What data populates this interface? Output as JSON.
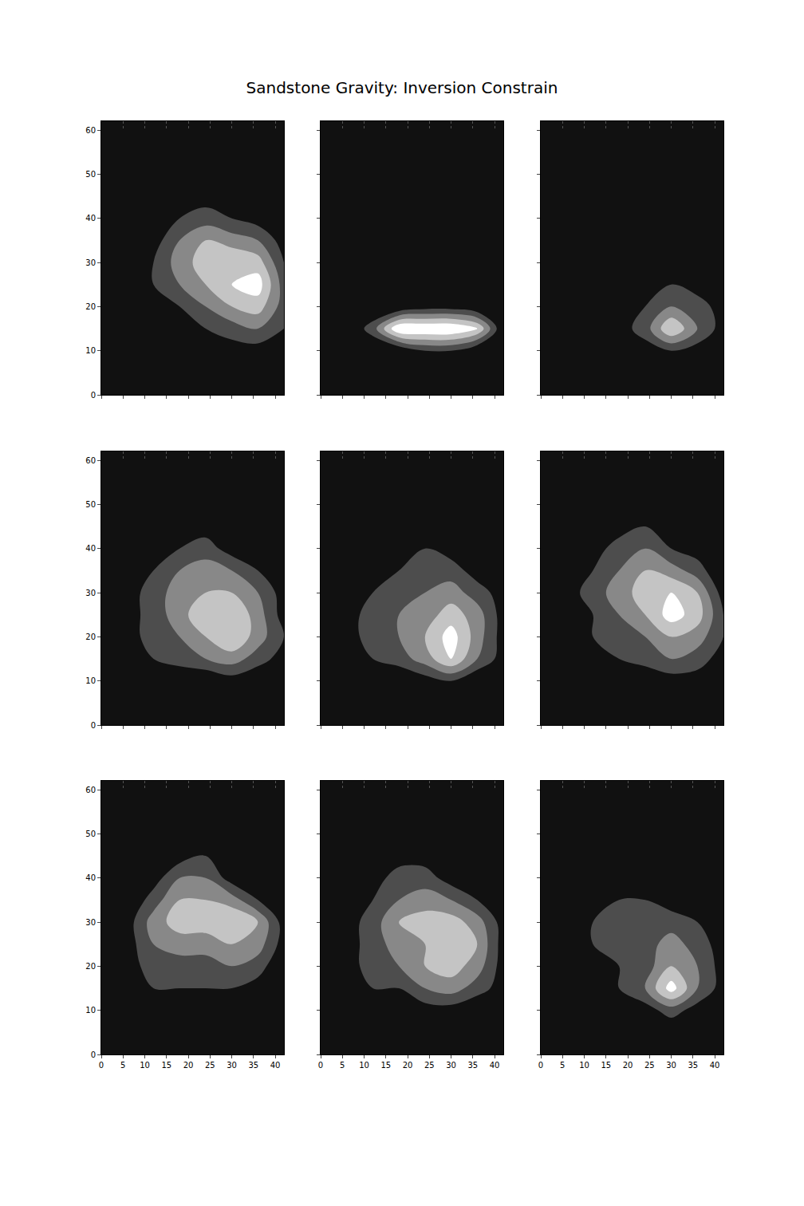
{
  "chart_data": {
    "type": "contour",
    "title": "Sandstone Gravity: Inversion Constrain",
    "xlim": [
      0,
      42
    ],
    "ylim": [
      0,
      62
    ],
    "xticks": [
      0,
      5,
      10,
      15,
      20,
      25,
      30,
      35,
      40
    ],
    "yticks": [
      0,
      10,
      20,
      30,
      40,
      50,
      60
    ],
    "zlim": [
      0,
      10
    ],
    "grid": true,
    "x": [
      0,
      6,
      12,
      18,
      24,
      30,
      36,
      42
    ],
    "y": [
      0,
      5,
      10,
      15,
      20,
      25,
      30,
      35,
      40,
      45,
      50,
      55,
      60
    ],
    "panels": [
      {
        "z": [
          [
            0,
            0,
            0,
            0,
            0,
            0,
            0,
            0
          ],
          [
            0,
            0,
            0,
            0,
            0,
            0,
            0,
            0
          ],
          [
            0,
            0,
            0,
            0,
            0,
            1,
            1,
            0
          ],
          [
            1,
            1,
            1,
            1,
            2,
            3,
            4,
            2
          ],
          [
            0,
            1,
            2,
            2,
            4,
            6,
            7,
            3
          ],
          [
            0,
            1,
            2,
            4,
            6,
            8,
            9,
            3
          ],
          [
            0,
            0,
            2,
            5,
            7,
            8,
            7,
            2
          ],
          [
            0,
            0,
            1,
            4,
            6,
            5,
            4,
            1
          ],
          [
            0,
            0,
            1,
            2,
            3,
            2,
            1,
            0
          ],
          [
            0,
            0,
            0,
            1,
            1,
            0,
            0,
            0
          ],
          [
            0,
            0,
            0,
            0,
            0,
            0,
            0,
            0
          ],
          [
            0,
            0,
            0,
            0,
            0,
            0,
            0,
            0
          ],
          [
            0,
            0,
            0,
            0,
            0,
            0,
            0,
            0
          ]
        ]
      },
      {
        "z": [
          [
            0,
            0,
            0,
            0,
            0,
            0,
            0,
            0
          ],
          [
            0,
            0,
            0,
            0,
            0,
            0,
            0,
            0
          ],
          [
            0,
            0,
            0,
            0,
            2,
            2,
            0,
            0
          ],
          [
            0,
            0,
            3,
            10,
            10,
            10,
            8,
            0
          ],
          [
            0,
            0,
            0,
            0,
            1,
            1,
            0,
            0
          ],
          [
            0,
            0,
            0,
            0,
            0,
            0,
            0,
            0
          ],
          [
            0,
            0,
            0,
            0,
            0,
            0,
            0,
            0
          ],
          [
            0,
            0,
            0,
            0,
            0,
            0,
            0,
            0
          ],
          [
            0,
            0,
            0,
            0,
            0,
            0,
            0,
            0
          ],
          [
            0,
            0,
            0,
            0,
            0,
            0,
            0,
            0
          ],
          [
            0,
            0,
            0,
            0,
            0,
            0,
            0,
            0
          ],
          [
            0,
            0,
            0,
            0,
            0,
            0,
            0,
            0
          ],
          [
            0,
            0,
            0,
            0,
            0,
            0,
            0,
            0
          ]
        ]
      },
      {
        "z": [
          [
            0,
            0,
            0,
            0,
            0,
            0,
            0,
            0
          ],
          [
            0,
            0,
            0,
            0,
            0,
            0,
            0,
            0
          ],
          [
            0,
            0,
            0,
            0,
            1,
            2,
            1,
            0
          ],
          [
            0,
            0,
            1,
            1,
            3,
            8,
            4,
            1
          ],
          [
            0,
            1,
            1,
            1,
            2,
            4,
            3,
            1
          ],
          [
            0,
            0,
            1,
            1,
            1,
            2,
            1,
            1
          ],
          [
            0,
            0,
            1,
            1,
            1,
            1,
            1,
            0
          ],
          [
            0,
            0,
            0,
            1,
            1,
            1,
            1,
            0
          ],
          [
            0,
            0,
            0,
            1,
            1,
            0,
            0,
            0
          ],
          [
            0,
            0,
            0,
            0,
            0,
            0,
            0,
            0
          ],
          [
            0,
            0,
            0,
            0,
            0,
            0,
            0,
            0
          ],
          [
            0,
            0,
            0,
            0,
            0,
            0,
            0,
            0
          ],
          [
            0,
            0,
            0,
            0,
            0,
            0,
            0,
            0
          ]
        ]
      },
      {
        "z": [
          [
            0,
            0,
            0,
            0,
            0,
            0,
            0,
            0
          ],
          [
            0,
            0,
            0,
            0,
            0,
            0,
            0,
            0
          ],
          [
            0,
            0,
            0,
            0,
            0,
            1,
            0,
            0
          ],
          [
            0,
            1,
            2,
            3,
            4,
            5,
            3,
            1
          ],
          [
            0,
            1,
            3,
            4,
            6,
            8,
            5,
            2
          ],
          [
            0,
            1,
            3,
            5,
            8,
            8,
            5,
            1
          ],
          [
            0,
            1,
            3,
            5,
            6,
            6,
            4,
            1
          ],
          [
            0,
            0,
            2,
            4,
            5,
            4,
            2,
            0
          ],
          [
            0,
            0,
            1,
            2,
            3,
            1,
            0,
            0
          ],
          [
            0,
            0,
            0,
            1,
            1,
            0,
            0,
            0
          ],
          [
            0,
            0,
            0,
            0,
            0,
            0,
            0,
            0
          ],
          [
            0,
            0,
            0,
            0,
            0,
            0,
            0,
            0
          ],
          [
            0,
            0,
            0,
            0,
            0,
            0,
            0,
            0
          ]
        ]
      },
      {
        "z": [
          [
            0,
            0,
            0,
            0,
            0,
            0,
            0,
            0
          ],
          [
            0,
            0,
            0,
            0,
            0,
            0,
            0,
            0
          ],
          [
            0,
            0,
            0,
            0,
            1,
            2,
            0,
            0
          ],
          [
            0,
            1,
            2,
            3,
            5,
            8,
            4,
            1
          ],
          [
            0,
            1,
            3,
            4,
            6,
            9,
            5,
            1
          ],
          [
            0,
            1,
            3,
            4,
            5,
            7,
            5,
            1
          ],
          [
            0,
            1,
            2,
            3,
            4,
            5,
            3,
            1
          ],
          [
            0,
            0,
            1,
            2,
            3,
            3,
            1,
            0
          ],
          [
            0,
            0,
            1,
            2,
            2,
            1,
            0,
            0
          ],
          [
            0,
            0,
            0,
            1,
            1,
            0,
            0,
            0
          ],
          [
            0,
            0,
            0,
            0,
            0,
            0,
            0,
            0
          ],
          [
            0,
            0,
            0,
            0,
            0,
            0,
            0,
            0
          ],
          [
            0,
            0,
            0,
            0,
            0,
            0,
            0,
            0
          ]
        ]
      },
      {
        "z": [
          [
            0,
            0,
            0,
            0,
            0,
            0,
            0,
            0
          ],
          [
            0,
            0,
            0,
            0,
            0,
            0,
            0,
            0
          ],
          [
            0,
            0,
            0,
            0,
            0,
            1,
            1,
            0
          ],
          [
            1,
            1,
            1,
            2,
            3,
            4,
            3,
            1
          ],
          [
            1,
            1,
            2,
            3,
            4,
            6,
            5,
            2
          ],
          [
            0,
            1,
            2,
            4,
            6,
            9,
            7,
            2
          ],
          [
            0,
            1,
            3,
            5,
            7,
            8,
            6,
            1
          ],
          [
            0,
            0,
            2,
            4,
            6,
            5,
            3,
            0
          ],
          [
            0,
            0,
            1,
            3,
            4,
            2,
            1,
            0
          ],
          [
            0,
            0,
            0,
            1,
            2,
            0,
            0,
            0
          ],
          [
            0,
            0,
            0,
            0,
            1,
            0,
            0,
            0
          ],
          [
            0,
            0,
            0,
            0,
            0,
            0,
            0,
            0
          ],
          [
            0,
            0,
            0,
            0,
            0,
            0,
            0,
            0
          ]
        ]
      },
      {
        "z": [
          [
            0,
            0,
            0,
            0,
            0,
            0,
            0,
            0
          ],
          [
            0,
            0,
            0,
            0,
            0,
            0,
            0,
            0
          ],
          [
            0,
            0,
            0,
            0,
            0,
            1,
            0,
            0
          ],
          [
            0,
            1,
            2,
            2,
            2,
            2,
            1,
            0
          ],
          [
            0,
            1,
            3,
            3,
            3,
            4,
            3,
            0
          ],
          [
            0,
            1,
            4,
            5,
            5,
            6,
            5,
            1
          ],
          [
            0,
            1,
            5,
            7,
            7,
            8,
            6,
            1
          ],
          [
            0,
            0,
            3,
            6,
            6,
            5,
            2,
            0
          ],
          [
            0,
            0,
            1,
            4,
            4,
            1,
            0,
            0
          ],
          [
            0,
            0,
            0,
            1,
            2,
            0,
            0,
            0
          ],
          [
            0,
            0,
            0,
            0,
            0,
            0,
            0,
            0
          ],
          [
            0,
            0,
            0,
            0,
            0,
            0,
            0,
            0
          ],
          [
            0,
            0,
            0,
            0,
            0,
            0,
            0,
            0
          ]
        ]
      },
      {
        "z": [
          [
            0,
            0,
            0,
            0,
            0,
            0,
            0,
            0
          ],
          [
            0,
            0,
            0,
            0,
            0,
            0,
            0,
            0
          ],
          [
            0,
            0,
            0,
            0,
            1,
            1,
            0,
            0
          ],
          [
            0,
            1,
            2,
            2,
            4,
            5,
            3,
            1
          ],
          [
            0,
            1,
            3,
            4,
            6,
            7,
            5,
            1
          ],
          [
            0,
            1,
            3,
            5,
            6,
            8,
            6,
            1
          ],
          [
            0,
            1,
            3,
            6,
            7,
            7,
            5,
            1
          ],
          [
            0,
            0,
            2,
            4,
            5,
            4,
            2,
            0
          ],
          [
            0,
            0,
            1,
            3,
            3,
            1,
            0,
            0
          ],
          [
            0,
            0,
            0,
            1,
            1,
            0,
            0,
            0
          ],
          [
            0,
            0,
            0,
            0,
            0,
            0,
            0,
            0
          ],
          [
            0,
            0,
            0,
            0,
            0,
            0,
            0,
            0
          ],
          [
            0,
            0,
            0,
            0,
            0,
            0,
            0,
            0
          ]
        ]
      },
      {
        "z": [
          [
            0,
            0,
            0,
            0,
            0,
            0,
            0,
            0
          ],
          [
            0,
            0,
            0,
            0,
            0,
            0,
            0,
            0
          ],
          [
            0,
            0,
            0,
            0,
            1,
            3,
            1,
            0
          ],
          [
            1,
            1,
            1,
            2,
            4,
            9,
            4,
            1
          ],
          [
            0,
            1,
            2,
            2,
            3,
            6,
            4,
            1
          ],
          [
            0,
            1,
            2,
            3,
            3,
            5,
            3,
            1
          ],
          [
            0,
            1,
            2,
            3,
            3,
            3,
            2,
            1
          ],
          [
            0,
            0,
            1,
            2,
            2,
            1,
            1,
            0
          ],
          [
            0,
            0,
            1,
            1,
            1,
            0,
            0,
            0
          ],
          [
            0,
            0,
            0,
            1,
            1,
            0,
            0,
            0
          ],
          [
            0,
            0,
            0,
            0,
            0,
            0,
            0,
            0
          ],
          [
            0,
            0,
            0,
            0,
            0,
            0,
            0,
            0
          ],
          [
            0,
            0,
            0,
            0,
            0,
            0,
            0,
            0
          ]
        ]
      }
    ]
  }
}
